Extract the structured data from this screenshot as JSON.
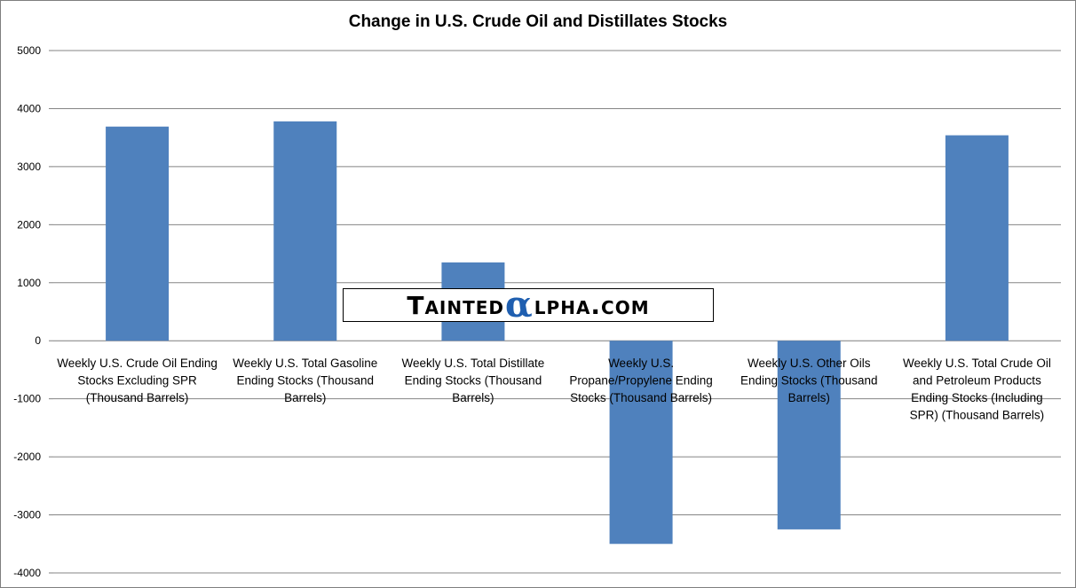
{
  "chart_data": {
    "type": "bar",
    "title": "Change in U.S. Crude Oil and Distillates Stocks",
    "categories": [
      "Weekly U.S. Crude Oil Ending Stocks Excluding SPR (Thousand Barrels)",
      "Weekly U.S. Total Gasoline Ending Stocks (Thousand Barrels)",
      "Weekly U.S. Total Distillate Ending Stocks (Thousand Barrels)",
      "Weekly U.S. Propane/Propylene Ending Stocks (Thousand Barrels)",
      "Weekly U.S. Other Oils Ending Stocks (Thousand Barrels)",
      "Weekly U.S. Total Crude Oil and Petroleum Products Ending Stocks (Including SPR) (Thousand Barrels)"
    ],
    "category_label_lines": [
      [
        "Weekly U.S. Crude Oil Ending",
        "Stocks Excluding SPR",
        "(Thousand Barrels)"
      ],
      [
        "Weekly U.S. Total Gasoline",
        "Ending Stocks (Thousand",
        "Barrels)"
      ],
      [
        "Weekly U.S. Total Distillate",
        "Ending Stocks (Thousand",
        "Barrels)"
      ],
      [
        "Weekly U.S.",
        "Propane/Propylene Ending",
        "Stocks (Thousand Barrels)"
      ],
      [
        "Weekly U.S. Other Oils",
        "Ending Stocks (Thousand",
        "Barrels)"
      ],
      [
        "Weekly U.S. Total Crude Oil",
        "and Petroleum Products",
        "Ending Stocks (Including",
        "SPR) (Thousand Barrels)"
      ]
    ],
    "values": [
      3690,
      3780,
      1350,
      -3500,
      -3250,
      3540
    ],
    "ylim": [
      -4000,
      5000
    ],
    "yticks": [
      5000,
      4000,
      3000,
      2000,
      1000,
      0,
      -1000,
      -2000,
      -3000,
      -4000
    ],
    "xlabel": "",
    "ylabel": "",
    "grid": true,
    "legend": "none",
    "bar_color": "#4f81bd",
    "grid_color": "#858585"
  },
  "watermark": {
    "pre": "Tainted",
    "alpha": "α",
    "post": "lpha.com"
  }
}
